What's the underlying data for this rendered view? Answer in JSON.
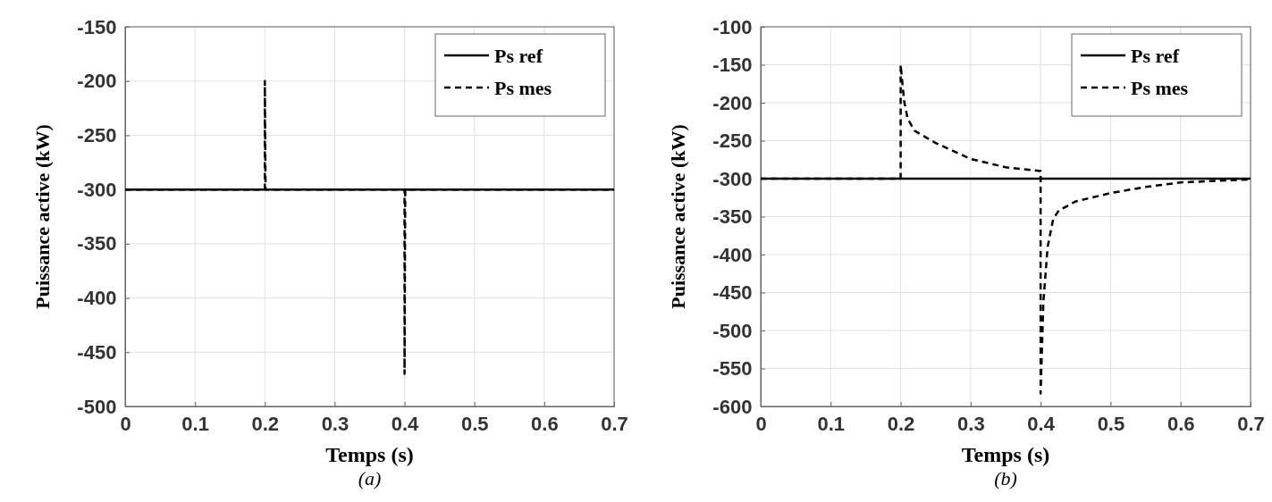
{
  "chart_data": [
    {
      "type": "line",
      "xlabel": "Temps (s)",
      "ylabel": "Puissance active (kW)",
      "annotations": [
        "(a)"
      ],
      "xlim": [
        0,
        0.7
      ],
      "ylim": [
        -500,
        -150
      ],
      "xticks": [
        0,
        0.1,
        0.2,
        0.3,
        0.4,
        0.5,
        0.6,
        0.7
      ],
      "yticks": [
        -500,
        -450,
        -400,
        -350,
        -300,
        -250,
        -200,
        -150
      ],
      "grid": true,
      "legend": "top right",
      "series": [
        {
          "name": "Ps ref",
          "color": "#000000",
          "line_style": "solid",
          "x": [
            0,
            0.7
          ],
          "values": [
            -300,
            -300
          ]
        },
        {
          "name": "Ps mes",
          "color": "#000000",
          "line_style": "dashed",
          "x": [
            0,
            0.2,
            0.2,
            0.201,
            0.4,
            0.4,
            0.401,
            0.7
          ],
          "values": [
            -300,
            -300,
            -200,
            -300,
            -300,
            -470,
            -300,
            -300
          ]
        }
      ]
    },
    {
      "type": "line",
      "xlabel": "Temps (s)",
      "ylabel": "Puissance active (kW)",
      "annotations": [
        "(b)"
      ],
      "xlim": [
        0,
        0.7
      ],
      "ylim": [
        -600,
        -100
      ],
      "xticks": [
        0,
        0.1,
        0.2,
        0.3,
        0.4,
        0.5,
        0.6,
        0.7
      ],
      "yticks": [
        -600,
        -550,
        -500,
        -450,
        -400,
        -350,
        -300,
        -250,
        -200,
        -150,
        -100
      ],
      "grid": true,
      "legend": "top right",
      "series": [
        {
          "name": "Ps ref",
          "color": "#000000",
          "line_style": "solid",
          "x": [
            0,
            0.7
          ],
          "values": [
            -300,
            -300
          ]
        },
        {
          "name": "Ps mes",
          "color": "#000000",
          "line_style": "dashed",
          "x": [
            0,
            0.2,
            0.2,
            0.205,
            0.21,
            0.22,
            0.25,
            0.3,
            0.35,
            0.4,
            0.4,
            0.404,
            0.41,
            0.418,
            0.426,
            0.45,
            0.5,
            0.55,
            0.6,
            0.65,
            0.7
          ],
          "values": [
            -300,
            -300,
            -150,
            -198,
            -221,
            -237,
            -253,
            -274,
            -285,
            -290,
            -583,
            -462,
            -390,
            -353,
            -342,
            -330,
            -319,
            -311,
            -305,
            -303,
            -301
          ]
        }
      ]
    }
  ]
}
